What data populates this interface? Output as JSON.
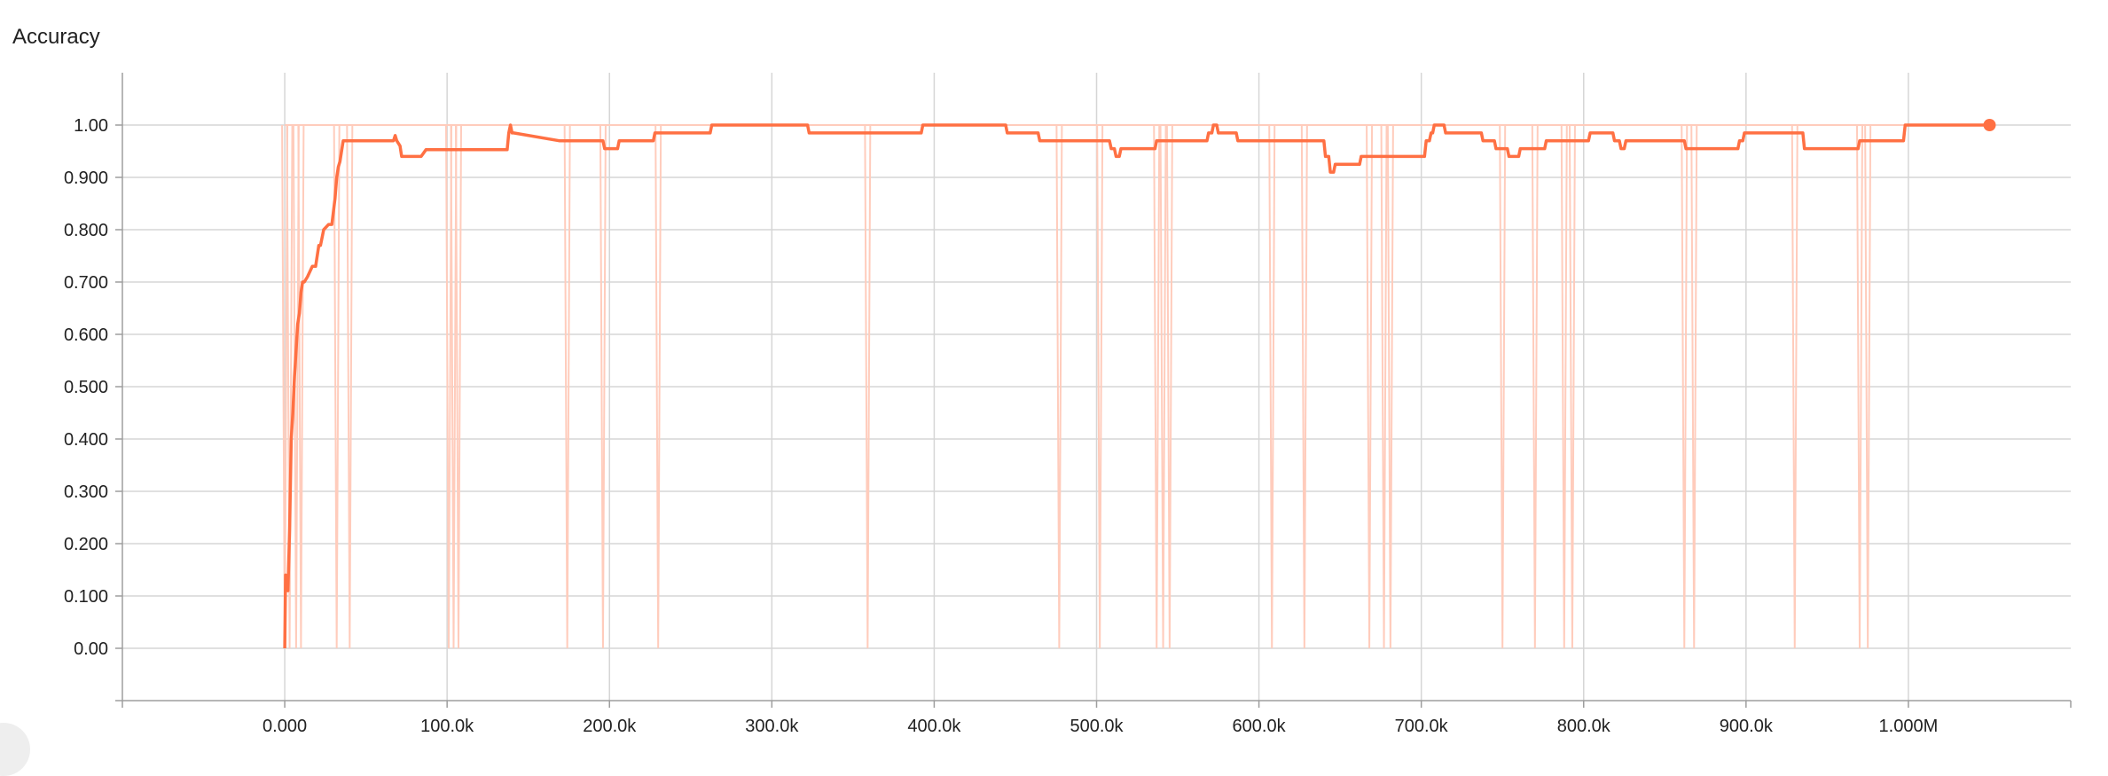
{
  "chart_data": {
    "type": "line",
    "title": "Accuracy",
    "xlabel": "",
    "ylabel": "",
    "xlim": [
      -100000,
      1100000
    ],
    "ylim": [
      -0.1,
      1.1
    ],
    "x_ticks": [
      {
        "value": 0,
        "label": "0.000"
      },
      {
        "value": 100000,
        "label": "100.0k"
      },
      {
        "value": 200000,
        "label": "200.0k"
      },
      {
        "value": 300000,
        "label": "300.0k"
      },
      {
        "value": 400000,
        "label": "400.0k"
      },
      {
        "value": 500000,
        "label": "500.0k"
      },
      {
        "value": 600000,
        "label": "600.0k"
      },
      {
        "value": 700000,
        "label": "700.0k"
      },
      {
        "value": 800000,
        "label": "800.0k"
      },
      {
        "value": 900000,
        "label": "900.0k"
      },
      {
        "value": 1000000,
        "label": "1.000M"
      }
    ],
    "y_ticks": [
      {
        "value": 0.0,
        "label": "0.00"
      },
      {
        "value": 0.1,
        "label": "0.100"
      },
      {
        "value": 0.2,
        "label": "0.200"
      },
      {
        "value": 0.3,
        "label": "0.300"
      },
      {
        "value": 0.4,
        "label": "0.400"
      },
      {
        "value": 0.5,
        "label": "0.500"
      },
      {
        "value": 0.6,
        "label": "0.600"
      },
      {
        "value": 0.7,
        "label": "0.700"
      },
      {
        "value": 0.8,
        "label": "0.800"
      },
      {
        "value": 0.9,
        "label": "0.900"
      },
      {
        "value": 1.0,
        "label": "1.00"
      }
    ],
    "grid": true,
    "colors": {
      "smoothed": "#ff7043",
      "raw": "#ffccbc",
      "grid": "#d6d6d6",
      "axis": "#9e9e9e"
    },
    "raw_drops_x": [
      0,
      3000,
      7000,
      10000,
      32000,
      40000,
      101000,
      104000,
      107000,
      174000,
      196000,
      230000,
      359000,
      477000,
      502000,
      537000,
      541000,
      545000,
      608000,
      628000,
      668000,
      677000,
      681000,
      750000,
      770000,
      788000,
      793000,
      862000,
      868000,
      930000,
      970000,
      975000
    ],
    "series": [
      {
        "x": [
          0,
          500,
          1000,
          1500,
          2000,
          3000,
          4000,
          5000,
          6000,
          7000,
          8000,
          9000,
          10000,
          11000,
          12000,
          14000,
          17000,
          19000,
          21000,
          22000,
          24000,
          27000,
          29000,
          31000,
          32000,
          33000,
          34000,
          36000,
          67000,
          68000,
          69000,
          71000,
          72000,
          73000,
          84000,
          87000,
          137000,
          138000,
          139000,
          140000,
          141000,
          169000,
          196000,
          197000,
          205000,
          206000,
          227000,
          228000,
          262000,
          263000,
          322000,
          323000,
          392000,
          393000,
          444000,
          445000,
          464000,
          465000,
          508000,
          509000,
          511000,
          512000,
          514000,
          515000,
          518000,
          519000,
          536000,
          537000,
          568000,
          569000,
          571000,
          572000,
          574000,
          575000,
          586000,
          587000,
          640000,
          641000,
          643000,
          644000,
          646000,
          647000,
          662000,
          663000,
          702000,
          703000,
          705000,
          706000,
          707000,
          708000,
          714000,
          715000,
          737000,
          738000,
          745000,
          746000,
          753000,
          754000,
          760000,
          761000,
          776000,
          777000,
          803000,
          804000,
          818000,
          819000,
          822000,
          823000,
          825000,
          826000,
          830000,
          831000,
          862000,
          863000,
          895000,
          896000,
          898000,
          899000,
          903000,
          904000,
          935000,
          936000,
          969000,
          970000,
          997000,
          998000,
          1000000,
          1001000,
          1050000
        ],
        "y": [
          0.0,
          0.14,
          0.11,
          0.13,
          0.11,
          0.23,
          0.4,
          0.45,
          0.52,
          0.57,
          0.62,
          0.64,
          0.68,
          0.7,
          0.7,
          0.71,
          0.73,
          0.73,
          0.77,
          0.77,
          0.8,
          0.81,
          0.81,
          0.86,
          0.9,
          0.92,
          0.93,
          0.97,
          0.97,
          0.98,
          0.97,
          0.96,
          0.94,
          0.94,
          0.94,
          0.953,
          0.953,
          0.985,
          1.0,
          0.985,
          0.985,
          0.97,
          0.97,
          0.955,
          0.955,
          0.97,
          0.97,
          0.985,
          0.985,
          1.0,
          1.0,
          0.985,
          0.985,
          1.0,
          1.0,
          0.985,
          0.985,
          0.97,
          0.97,
          0.955,
          0.955,
          0.94,
          0.94,
          0.955,
          0.955,
          0.955,
          0.955,
          0.97,
          0.97,
          0.985,
          0.985,
          1.0,
          1.0,
          0.985,
          0.985,
          0.97,
          0.97,
          0.94,
          0.94,
          0.91,
          0.91,
          0.925,
          0.925,
          0.94,
          0.94,
          0.97,
          0.97,
          0.985,
          0.985,
          1.0,
          1.0,
          0.985,
          0.985,
          0.97,
          0.97,
          0.955,
          0.955,
          0.94,
          0.94,
          0.955,
          0.955,
          0.97,
          0.97,
          0.985,
          0.985,
          0.97,
          0.97,
          0.955,
          0.955,
          0.97,
          0.97,
          0.97,
          0.97,
          0.955,
          0.955,
          0.97,
          0.97,
          0.985,
          0.985,
          0.985,
          0.985,
          0.955,
          0.955,
          0.97,
          0.97,
          1.0,
          1.0,
          1.0,
          1.0
        ]
      }
    ]
  }
}
